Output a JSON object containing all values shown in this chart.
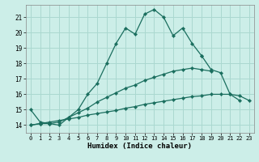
{
  "xlabel": "Humidex (Indice chaleur)",
  "bg_color": "#cceee8",
  "line_color": "#1a6e5e",
  "grid_color": "#aad8d0",
  "xlim": [
    -0.5,
    23.5
  ],
  "ylim": [
    13.5,
    21.8
  ],
  "xticks": [
    0,
    1,
    2,
    3,
    4,
    5,
    6,
    7,
    8,
    9,
    10,
    11,
    12,
    13,
    14,
    15,
    16,
    17,
    18,
    19,
    20,
    21,
    22,
    23
  ],
  "yticks": [
    14,
    15,
    16,
    17,
    18,
    19,
    20,
    21
  ],
  "line1_y": [
    15.0,
    14.2,
    14.1,
    14.0,
    14.5,
    15.0,
    16.0,
    16.7,
    18.0,
    19.3,
    20.3,
    19.9,
    21.2,
    21.5,
    21.0,
    19.8,
    20.3,
    19.3,
    18.5,
    null,
    null,
    null,
    null,
    null
  ],
  "line1b_y": [
    null,
    null,
    null,
    null,
    null,
    null,
    null,
    null,
    null,
    null,
    null,
    null,
    null,
    null,
    null,
    null,
    null,
    null,
    18.5,
    17.6,
    17.4,
    16.0,
    15.6,
    null
  ],
  "line2_y": [
    14.0,
    14.1,
    14.1,
    14.2,
    14.5,
    14.8,
    15.1,
    15.5,
    15.8,
    16.1,
    16.4,
    16.6,
    16.9,
    17.1,
    17.3,
    17.5,
    17.6,
    17.7,
    17.6,
    17.5,
    null,
    null,
    null,
    null
  ],
  "line3_y": [
    14.0,
    14.1,
    14.2,
    14.3,
    14.4,
    14.5,
    14.65,
    14.75,
    14.85,
    14.95,
    15.1,
    15.2,
    15.35,
    15.45,
    15.55,
    15.65,
    15.75,
    15.85,
    15.9,
    16.0,
    16.0,
    16.0,
    15.9,
    15.6
  ]
}
